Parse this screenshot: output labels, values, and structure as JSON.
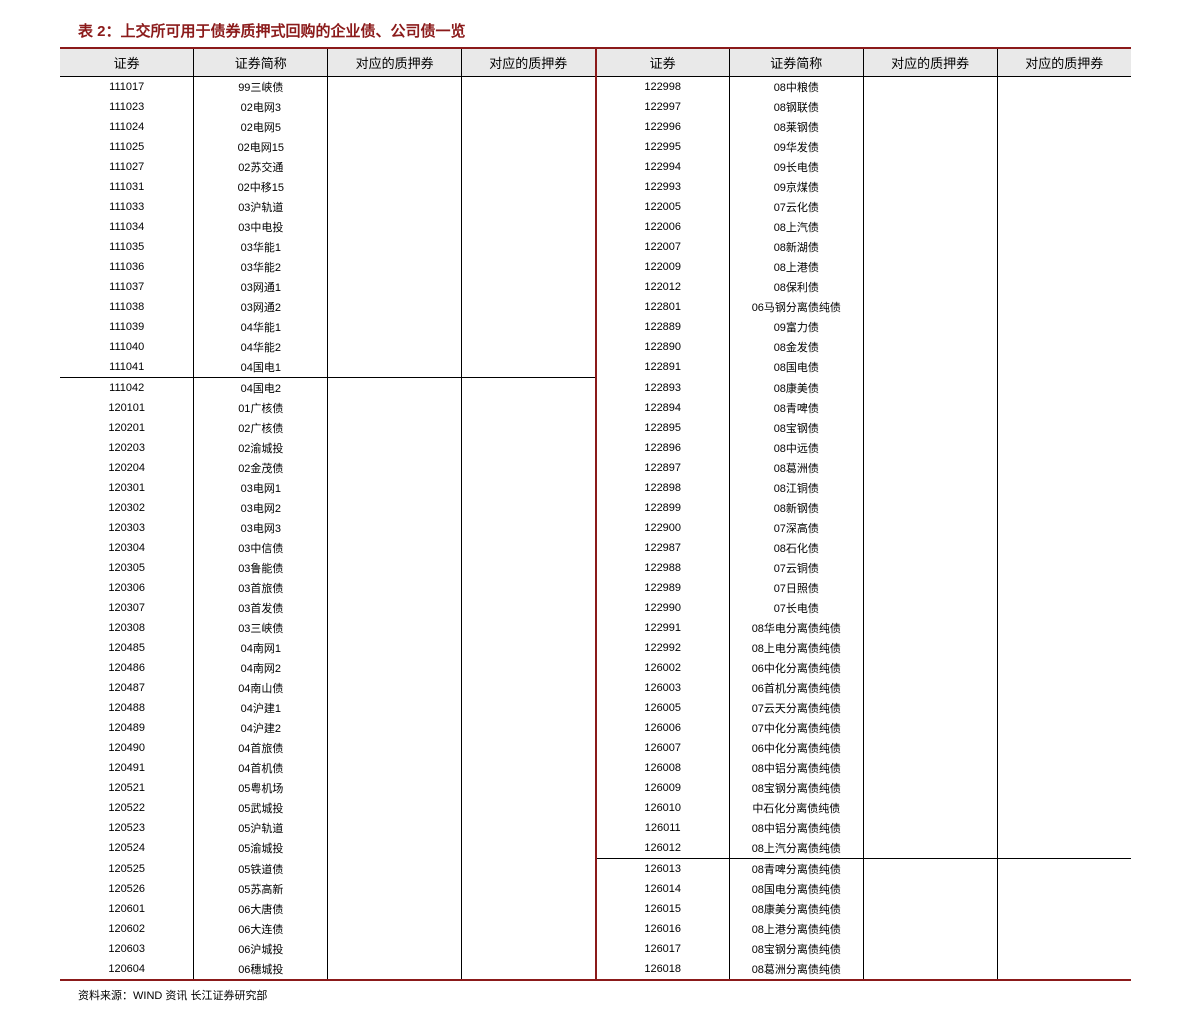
{
  "title": "表 2：上交所可用于债券质押式回购的企业债、公司债一览",
  "columns": [
    "证券",
    "证券简称",
    "对应的质押券",
    "对应的质押券",
    "证券",
    "证券简称",
    "对应的质押券",
    "对应的质押券"
  ],
  "note": "资料来源：WIND 资讯 长江证券研究部",
  "rows": [
    [
      "111017",
      "99三峡债",
      "",
      "",
      "122998",
      "08中粮债",
      "",
      ""
    ],
    [
      "111023",
      "02电网3",
      "",
      "",
      "122997",
      "08钢联债",
      "",
      ""
    ],
    [
      "111024",
      "02电网5",
      "",
      "",
      "122996",
      "08莱钢债",
      "",
      ""
    ],
    [
      "111025",
      "02电网15",
      "",
      "",
      "122995",
      "09华发债",
      "",
      ""
    ],
    [
      "111027",
      "02苏交通",
      "",
      "",
      "122994",
      "09长电债",
      "",
      ""
    ],
    [
      "111031",
      "02中移15",
      "",
      "",
      "122993",
      "09京煤债",
      "",
      ""
    ],
    [
      "111033",
      "03沪轨道",
      "",
      "",
      "122005",
      "07云化债",
      "",
      ""
    ],
    [
      "111034",
      "03中电投",
      "",
      "",
      "122006",
      "08上汽债",
      "",
      ""
    ],
    [
      "111035",
      "03华能1",
      "",
      "",
      "122007",
      "08新湖债",
      "",
      ""
    ],
    [
      "111036",
      "03华能2",
      "",
      "",
      "122009",
      "08上港债",
      "",
      ""
    ],
    [
      "111037",
      "03网通1",
      "",
      "",
      "122012",
      "08保利债",
      "",
      ""
    ],
    [
      "111038",
      "03网通2",
      "",
      "",
      "122801",
      "06马钢分离债纯债",
      "",
      ""
    ],
    [
      "111039",
      "04华能1",
      "",
      "",
      "122889",
      "09富力债",
      "",
      ""
    ],
    [
      "111040",
      "04华能2",
      "",
      "",
      "122890",
      "08金发债",
      "",
      ""
    ],
    [
      "111041",
      "04国电1",
      "__SECTION_BREAK_L__",
      "",
      "122891",
      "08国电债",
      "",
      ""
    ],
    [
      "111042",
      "04国电2",
      "",
      "",
      "122893",
      "08康美债",
      "",
      ""
    ],
    [
      "120101",
      "01广核债",
      "",
      "",
      "122894",
      "08青啤债",
      "",
      ""
    ],
    [
      "120201",
      "02广核债",
      "",
      "",
      "122895",
      "08宝钢债",
      "",
      ""
    ],
    [
      "120203",
      "02渝城投",
      "",
      "",
      "122896",
      "08中远债",
      "",
      ""
    ],
    [
      "120204",
      "02金茂债",
      "",
      "",
      "122897",
      "08葛洲债",
      "",
      ""
    ],
    [
      "120301",
      "03电网1",
      "",
      "",
      "122898",
      "08江铜债",
      "",
      ""
    ],
    [
      "120302",
      "03电网2",
      "",
      "",
      "122899",
      "08新钢债",
      "",
      ""
    ],
    [
      "120303",
      "03电网3",
      "",
      "",
      "122900",
      "07深高债",
      "",
      ""
    ],
    [
      "120304",
      "03中信债",
      "",
      "",
      "122987",
      "08石化债",
      "",
      ""
    ],
    [
      "120305",
      "03鲁能债",
      "",
      "",
      "122988",
      "07云铜债",
      "",
      ""
    ],
    [
      "120306",
      "03首旅债",
      "",
      "",
      "122989",
      "07日照债",
      "",
      ""
    ],
    [
      "120307",
      "03首发债",
      "",
      "",
      "122990",
      "07长电债",
      "",
      ""
    ],
    [
      "120308",
      "03三峡债",
      "",
      "",
      "122991",
      "08华电分离债纯债",
      "",
      ""
    ],
    [
      "120485",
      "04南网1",
      "",
      "",
      "122992",
      "08上电分离债纯债",
      "",
      ""
    ],
    [
      "120486",
      "04南网2",
      "",
      "",
      "126002",
      "06中化分离债纯债",
      "",
      ""
    ],
    [
      "120487",
      "04南山债",
      "",
      "",
      "126003",
      "06首机分离债纯债",
      "",
      ""
    ],
    [
      "120488",
      "04沪建1",
      "",
      "",
      "126005",
      "07云天分离债纯债",
      "",
      ""
    ],
    [
      "120489",
      "04沪建2",
      "",
      "",
      "126006",
      "07中化分离债纯债",
      "",
      ""
    ],
    [
      "120490",
      "04首旅债",
      "",
      "",
      "126007",
      "06中化分离债纯债",
      "",
      ""
    ],
    [
      "120491",
      "04首机债",
      "",
      "",
      "126008",
      "08中铝分离债纯债",
      "",
      ""
    ],
    [
      "120521",
      "05粤机场",
      "",
      "",
      "126009",
      "08宝钢分离债纯债",
      "",
      ""
    ],
    [
      "120522",
      "05武城投",
      "",
      "",
      "126010",
      "中石化分离债纯债",
      "",
      ""
    ],
    [
      "120523",
      "05沪轨道",
      "",
      "",
      "126011",
      "08中铝分离债纯债",
      "",
      ""
    ],
    [
      "120524",
      "05渝城投",
      "",
      "",
      "126012",
      "08上汽分离债纯债",
      "__SECTION_BREAK_R__",
      ""
    ],
    [
      "120525",
      "05铁道债",
      "",
      "",
      "126013",
      "08青啤分离债纯债",
      "",
      ""
    ],
    [
      "120526",
      "05苏高新",
      "",
      "",
      "126014",
      "08国电分离债纯债",
      "",
      ""
    ],
    [
      "120601",
      "06大唐债",
      "",
      "",
      "126015",
      "08康美分离债纯债",
      "",
      ""
    ],
    [
      "120602",
      "06大连债",
      "",
      "",
      "126016",
      "08上港分离债纯债",
      "",
      ""
    ],
    [
      "120603",
      "06沪城投",
      "",
      "",
      "126017",
      "08宝钢分离债纯债",
      "",
      ""
    ],
    [
      "120604",
      "06穗城投",
      "",
      "",
      "126018",
      "08葛洲分离债纯债",
      "",
      ""
    ]
  ]
}
